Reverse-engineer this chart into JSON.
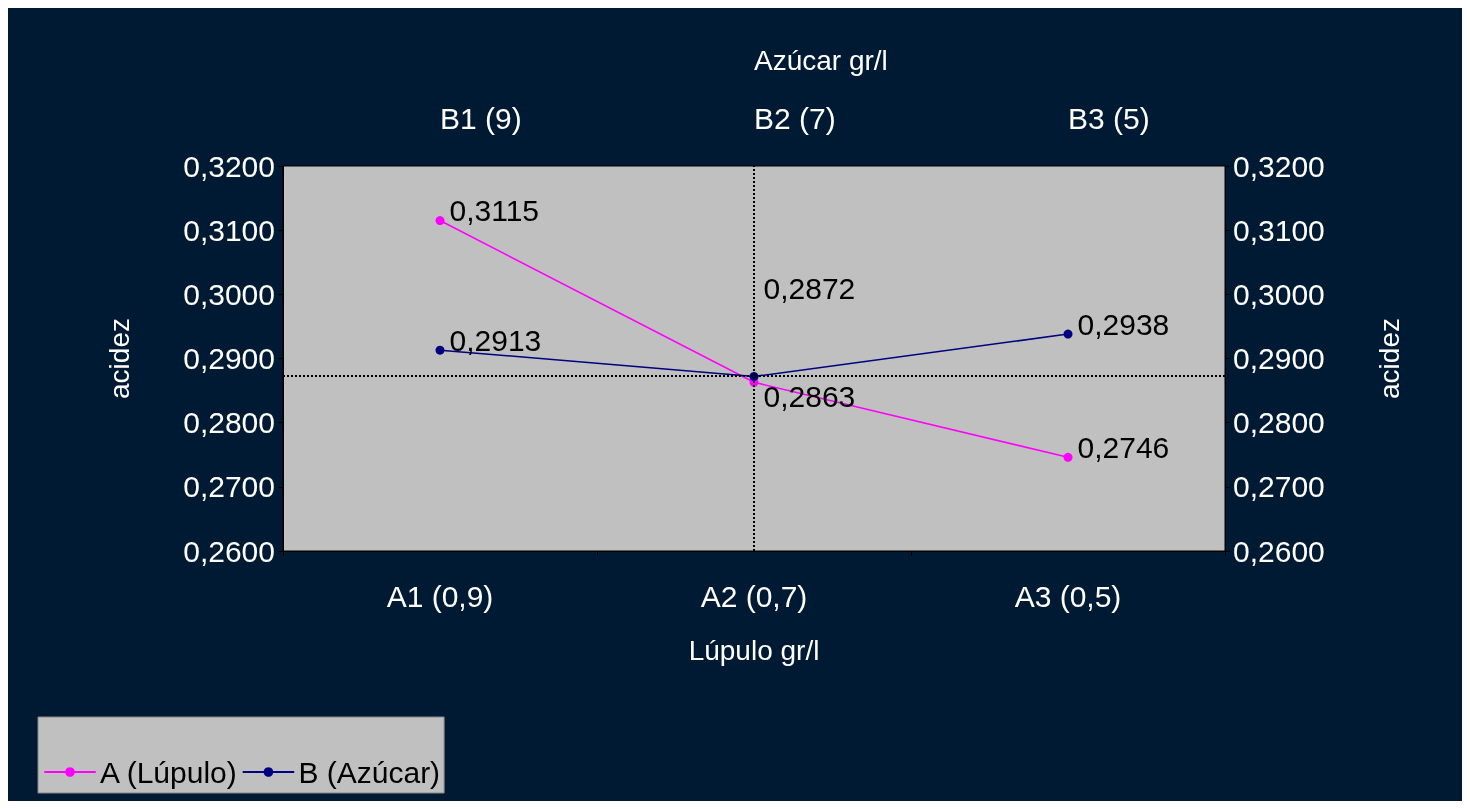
{
  "chart_data": {
    "type": "line",
    "xlabel": "Lúpulo gr/l",
    "x2label": "Azúcar gr/l",
    "ylabel": "acidez",
    "y2label": "acidez",
    "categories": [
      "A1 (0,9)",
      "A2 (0,7)",
      "A3 (0,5)"
    ],
    "annotations": [
      "B1 (9)",
      "B2 (7)",
      "B3 (5)"
    ],
    "series": [
      {
        "name": "A (Lúpulo)",
        "color": "#ff00ff",
        "values": [
          0.3115,
          0.2863,
          0.2746
        ],
        "value_labels": [
          "0,3115",
          "0,2863",
          "0,2746"
        ]
      },
      {
        "name": "B (Azúcar)",
        "color": "#000080",
        "values": [
          0.2913,
          0.2872,
          0.2938
        ],
        "value_labels": [
          "0,2913",
          "0,2872",
          "0,2938"
        ]
      }
    ],
    "ylim": [
      0.26,
      0.32
    ],
    "yticks": [
      {
        "value": 0.26,
        "label": "0,2600"
      },
      {
        "value": 0.27,
        "label": "0,2700"
      },
      {
        "value": 0.28,
        "label": "0,2800"
      },
      {
        "value": 0.29,
        "label": "0,2900"
      },
      {
        "value": 0.3,
        "label": "0,3000"
      },
      {
        "value": 0.31,
        "label": "0,3100"
      },
      {
        "value": 0.32,
        "label": "0,3200"
      }
    ],
    "y2lim": [
      0.26,
      0.32
    ],
    "y2ticks": [
      {
        "value": 0.26,
        "label": "0,2600"
      },
      {
        "value": 0.27,
        "label": "0,2700"
      },
      {
        "value": 0.28,
        "label": "0,2800"
      },
      {
        "value": 0.29,
        "label": "0,2900"
      },
      {
        "value": 0.3,
        "label": "0,3000"
      },
      {
        "value": 0.31,
        "label": "0,3100"
      },
      {
        "value": 0.32,
        "label": "0,3200"
      }
    ],
    "ref_lines": [
      {
        "axis": "y",
        "value": 0.2873,
        "line_style": "dotted",
        "color": "#000000"
      },
      {
        "axis": "x",
        "value": "A2 (0,7)",
        "line_style": "dotted",
        "color": "#000000"
      }
    ],
    "marker": "circle",
    "line_style": "solid",
    "grid": false,
    "legend": "bottom left"
  }
}
